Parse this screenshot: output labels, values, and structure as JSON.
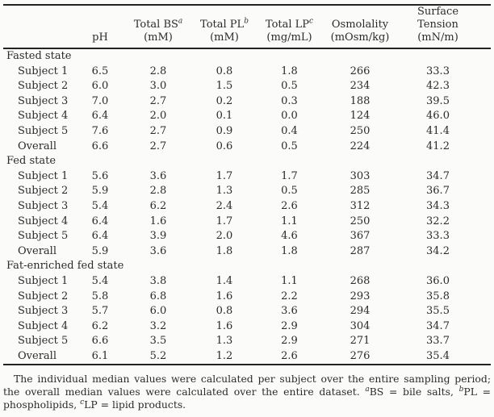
{
  "colors": {
    "background": "#fbfbfa",
    "text": "#2b2b2b",
    "rule": "#232323"
  },
  "table": {
    "columns": [
      {
        "line2": "pH"
      },
      {
        "line1": "Total BS",
        "sup": "a",
        "line2": "(mM)"
      },
      {
        "line1": "Total PL",
        "sup": "b",
        "line2": "(mM)"
      },
      {
        "line1": "Total LP",
        "sup": "c",
        "line2": "(mg/mL)"
      },
      {
        "line1": "Osmolality",
        "line2": "(mOsm/kg)"
      },
      {
        "line1": "Surface",
        "line2": "Tension (mN/m)"
      }
    ],
    "sections": [
      {
        "label": "Fasted state",
        "rows": [
          {
            "label": "Subject 1",
            "values": [
              "6.5",
              "2.8",
              "0.8",
              "1.8",
              "266",
              "33.3"
            ]
          },
          {
            "label": "Subject 2",
            "values": [
              "6.0",
              "3.0",
              "1.5",
              "0.5",
              "234",
              "42.3"
            ]
          },
          {
            "label": "Subject 3",
            "values": [
              "7.0",
              "2.7",
              "0.2",
              "0.3",
              "188",
              "39.5"
            ]
          },
          {
            "label": "Subject 4",
            "values": [
              "6.4",
              "2.0",
              "0.1",
              "0.0",
              "124",
              "46.0"
            ]
          },
          {
            "label": "Subject 5",
            "values": [
              "7.6",
              "2.7",
              "0.9",
              "0.4",
              "250",
              "41.4"
            ]
          },
          {
            "label": "Overall",
            "values": [
              "6.6",
              "2.7",
              "0.6",
              "0.5",
              "224",
              "41.2"
            ]
          }
        ]
      },
      {
        "label": "Fed state",
        "rows": [
          {
            "label": "Subject 1",
            "values": [
              "5.6",
              "3.6",
              "1.7",
              "1.7",
              "303",
              "34.7"
            ]
          },
          {
            "label": "Subject 2",
            "values": [
              "5.9",
              "2.8",
              "1.3",
              "0.5",
              "285",
              "36.7"
            ]
          },
          {
            "label": "Subject 3",
            "values": [
              "5.4",
              "6.2",
              "2.4",
              "2.6",
              "312",
              "34.3"
            ]
          },
          {
            "label": "Subject 4",
            "values": [
              "6.4",
              "1.6",
              "1.7",
              "1.1",
              "250",
              "32.2"
            ]
          },
          {
            "label": "Subject 5",
            "values": [
              "6.4",
              "3.9",
              "2.0",
              "4.6",
              "367",
              "33.3"
            ]
          },
          {
            "label": "Overall",
            "values": [
              "5.9",
              "3.6",
              "1.8",
              "1.8",
              "287",
              "34.2"
            ]
          }
        ]
      },
      {
        "label": "Fat-enriched fed state",
        "rows": [
          {
            "label": "Subject 1",
            "values": [
              "5.4",
              "3.8",
              "1.4",
              "1.1",
              "268",
              "36.0"
            ]
          },
          {
            "label": "Subject 2",
            "values": [
              "5.8",
              "6.8",
              "1.6",
              "2.2",
              "293",
              "35.8"
            ]
          },
          {
            "label": "Subject 3",
            "values": [
              "5.7",
              "6.0",
              "0.8",
              "3.6",
              "294",
              "35.5"
            ]
          },
          {
            "label": "Subject 4",
            "values": [
              "6.2",
              "3.2",
              "1.6",
              "2.9",
              "304",
              "34.7"
            ]
          },
          {
            "label": "Subject 5",
            "values": [
              "6.6",
              "3.5",
              "1.3",
              "2.9",
              "271",
              "33.7"
            ]
          },
          {
            "label": "Overall",
            "values": [
              "6.1",
              "5.2",
              "1.2",
              "2.6",
              "276",
              "35.4"
            ]
          }
        ]
      }
    ]
  },
  "footnote": {
    "text": "The individual median values were calculated per subject over the entire sampling period; the overall median values were calculated over the entire dataset.",
    "defs": [
      {
        "sup": "a",
        "text": "BS = bile salts,"
      },
      {
        "sup": "b",
        "text": "PL = phospholipids,"
      },
      {
        "sup": "c",
        "text": "LP = lipid products."
      }
    ]
  }
}
